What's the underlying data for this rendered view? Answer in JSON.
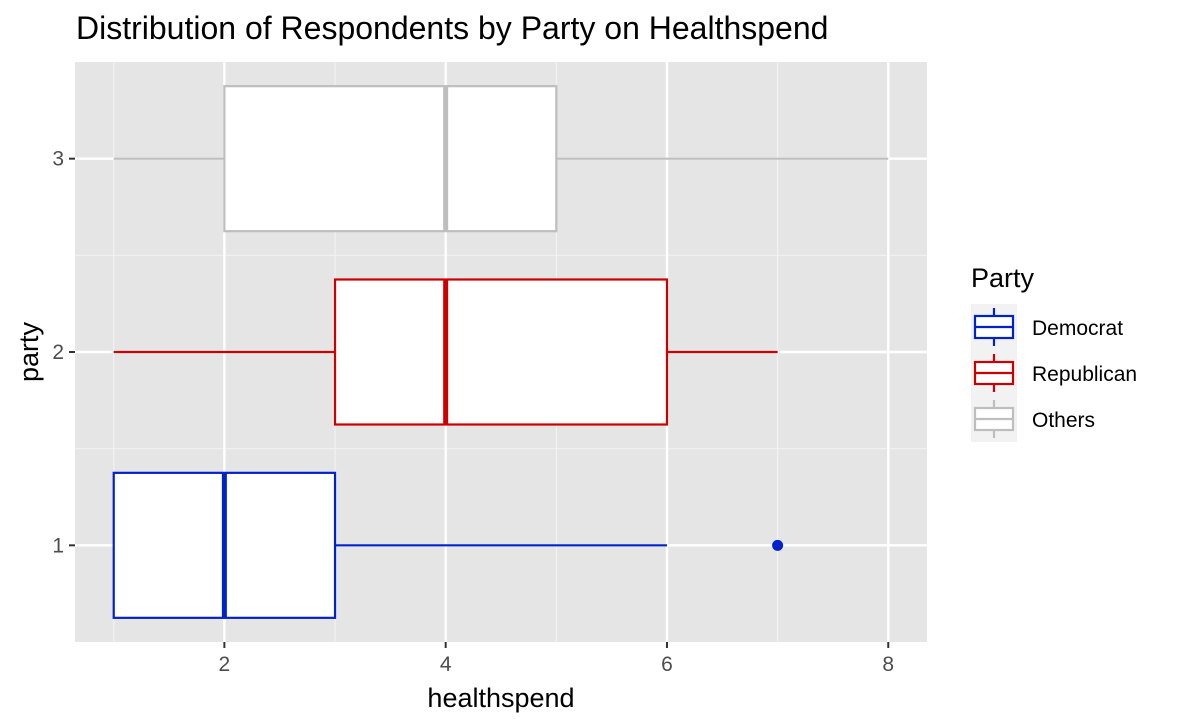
{
  "chart_data": {
    "type": "boxplot",
    "orientation": "horizontal",
    "title": "Distribution of Respondents by Party on Healthspend",
    "xlabel": "healthspend",
    "ylabel": "party",
    "xlim": [
      0.65,
      8.35
    ],
    "ylim": [
      0.5,
      3.5
    ],
    "x_ticks": [
      2,
      4,
      6,
      8
    ],
    "y_ticks": [
      1,
      2,
      3
    ],
    "grid": true,
    "legend": {
      "title": "Party",
      "position": "right",
      "items": [
        {
          "label": "Democrat",
          "color": "#0022cc"
        },
        {
          "label": "Republican",
          "color": "#cc0000"
        },
        {
          "label": "Others",
          "color": "#bebebe"
        }
      ]
    },
    "series": [
      {
        "name": "Democrat",
        "y": 1,
        "whisker_low": 1,
        "q1": 1,
        "median": 2,
        "q3": 3,
        "whisker_high": 6,
        "outliers": [
          7
        ],
        "color": "#0022cc"
      },
      {
        "name": "Republican",
        "y": 2,
        "whisker_low": 1,
        "q1": 3,
        "median": 4,
        "q3": 6,
        "whisker_high": 7,
        "outliers": [],
        "color": "#cc0000"
      },
      {
        "name": "Others",
        "y": 3,
        "whisker_low": 1,
        "q1": 2,
        "median": 4,
        "q3": 5,
        "whisker_high": 8,
        "outliers": [],
        "color": "#bebebe"
      }
    ]
  }
}
